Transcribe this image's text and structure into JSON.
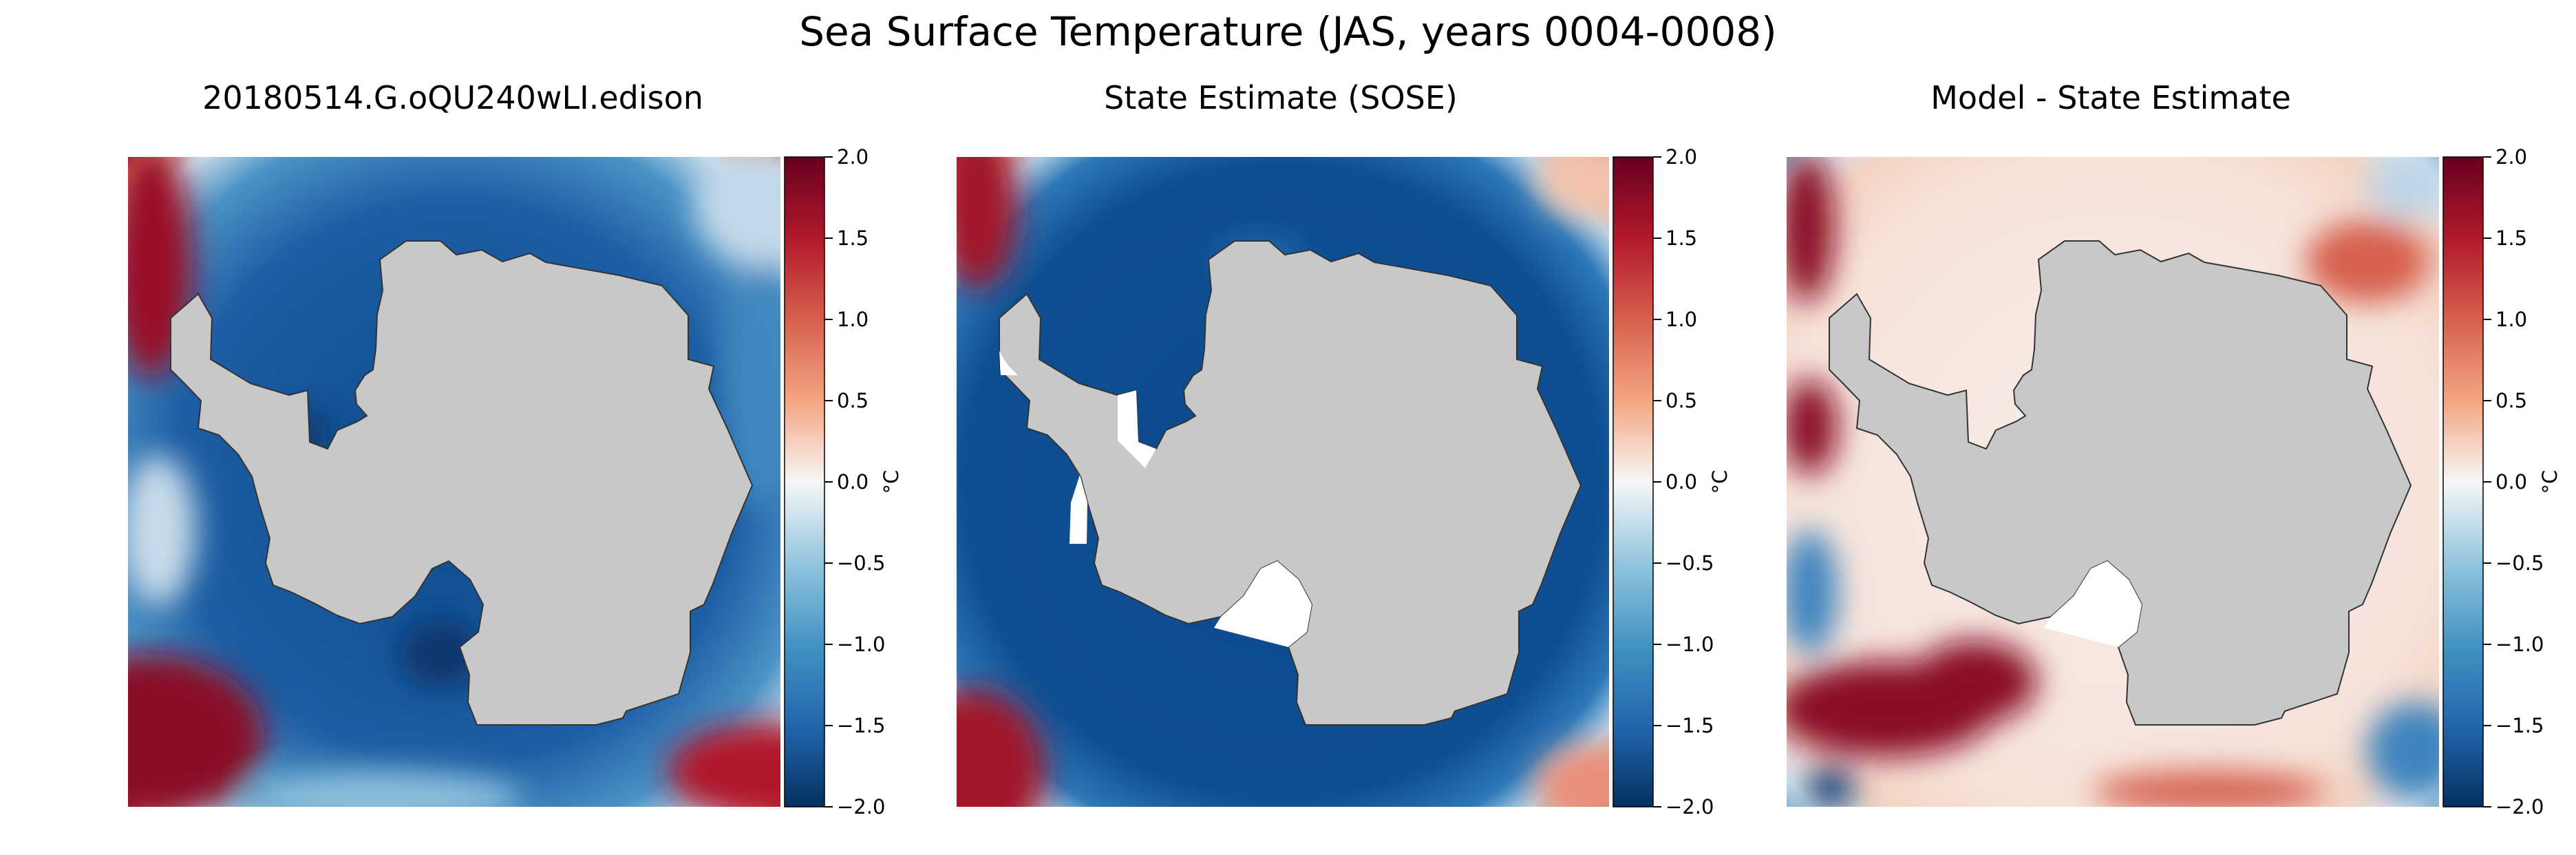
{
  "figure": {
    "title": "Sea Surface Temperature (JAS, years 0004-0008)"
  },
  "chart_data": [
    {
      "type": "heatmap",
      "title": "20180514.G.oQU240wLI.edison",
      "projection": "south-polar-stereographic",
      "colormap": "RdBu_r",
      "land_color": "#c8c8c8",
      "colorbar": {
        "label": "°C",
        "range": [
          -2.0,
          2.0
        ],
        "ticks": [
          "2.0",
          "1.5",
          "1.0",
          "0.5",
          "0.0",
          "−0.5",
          "−1.0",
          "−1.5",
          "−2.0"
        ]
      }
    },
    {
      "type": "heatmap",
      "title": "State Estimate (SOSE)",
      "projection": "south-polar-stereographic",
      "colormap": "RdBu_r",
      "land_color": "#c8c8c8",
      "colorbar": {
        "label": "°C",
        "range": [
          -2.0,
          2.0
        ],
        "ticks": [
          "2.0",
          "1.5",
          "1.0",
          "0.5",
          "0.0",
          "−0.5",
          "−1.0",
          "−1.5",
          "−2.0"
        ]
      }
    },
    {
      "type": "heatmap",
      "title": "Model - State Estimate",
      "projection": "south-polar-stereographic",
      "colormap": "RdBu_r",
      "land_color": "#c8c8c8",
      "colorbar": {
        "label": "°C",
        "range": [
          -2.0,
          2.0
        ],
        "ticks": [
          "2.0",
          "1.5",
          "1.0",
          "0.5",
          "0.0",
          "−0.5",
          "−1.0",
          "−1.5",
          "−2.0"
        ]
      }
    }
  ]
}
